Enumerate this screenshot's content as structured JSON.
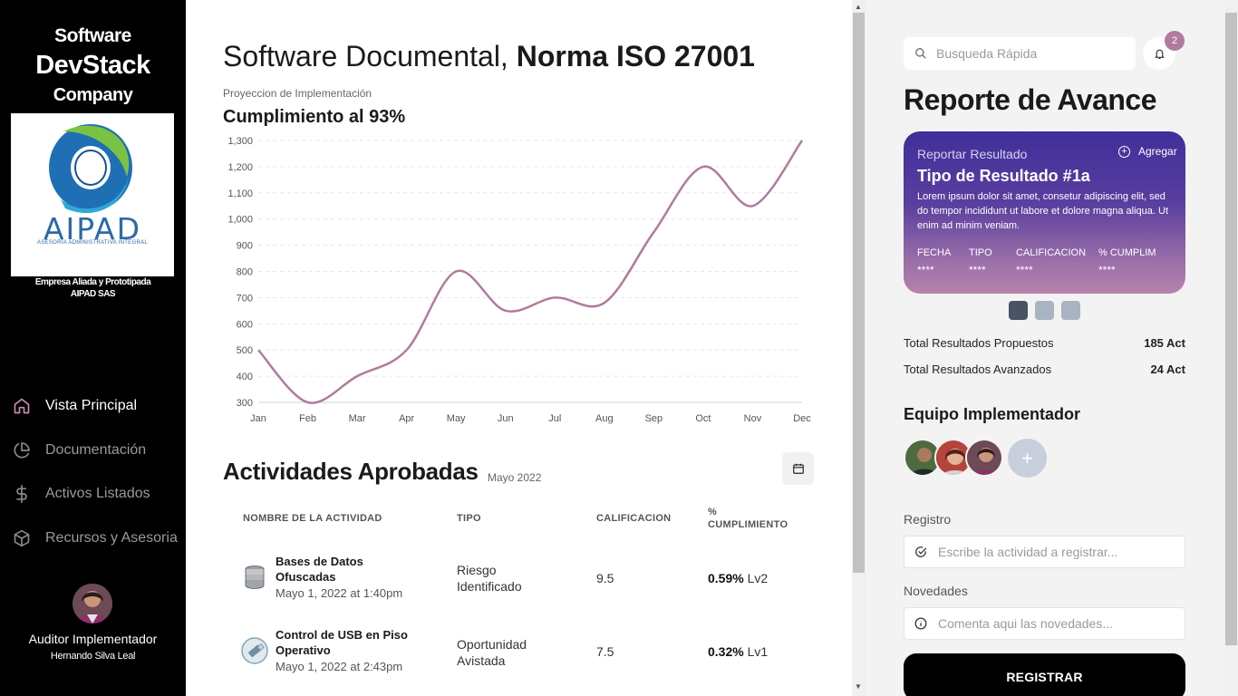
{
  "brand": {
    "line1": "Software",
    "line2": "DevStack",
    "line3": "Company"
  },
  "partner": {
    "logo_text": "AIPAD",
    "logo_sub": "ASESORÍA ADMINISTRATIVA INTEGRAL",
    "line1": "Empresa Aliada y Prototipada",
    "line2": "AIPAD SAS"
  },
  "nav": [
    {
      "label": "Vista Principal",
      "icon": "home-icon",
      "active": true
    },
    {
      "label": "Documentación",
      "icon": "pie-chart-icon",
      "active": false
    },
    {
      "label": "Activos Listados",
      "icon": "dollar-icon",
      "active": false
    },
    {
      "label": "Recursos y Asesoria",
      "icon": "box-icon",
      "active": false
    }
  ],
  "user": {
    "role": "Auditor Implementador",
    "name": "Hernando Silva Leal"
  },
  "main": {
    "title_light": "Software Documental, ",
    "title_bold": "Norma ISO 27001",
    "chart_subtitle": "Proyeccion de Implementación",
    "chart_title": "Cumplimiento al 93%",
    "activities_title": "Actividades Aprobadas",
    "activities_date": "Mayo 2022",
    "columns": [
      "NOMBRE DE LA ACTIVIDAD",
      "TIPO",
      "CALIFICACION",
      "%",
      "CUMPLIMIENTO"
    ],
    "rows": [
      {
        "name": "Bases de Datos Ofuscadas",
        "date": "Mayo 1, 2022 at 1:40pm",
        "type": "Riesgo Identificado",
        "score": "9.5",
        "pct": "0.59%",
        "level": "Lv2",
        "icon": "database-icon"
      },
      {
        "name": "Control de USB en Piso Operativo",
        "date": "Mayo 1, 2022 at 2:43pm",
        "type": "Oportunidad Avistada",
        "score": "7.5",
        "pct": "0.32%",
        "level": "Lv1",
        "icon": "usb-icon"
      }
    ]
  },
  "chart_data": {
    "type": "line",
    "title": "Cumplimiento al 93%",
    "subtitle": "Proyeccion de Implementación",
    "categories": [
      "Jan",
      "Feb",
      "Mar",
      "Apr",
      "May",
      "Jun",
      "Jul",
      "Aug",
      "Sep",
      "Oct",
      "Nov",
      "Dec"
    ],
    "series": [
      {
        "name": "Cumplimiento",
        "values": [
          500,
          300,
          400,
          500,
          800,
          650,
          700,
          680,
          950,
          1200,
          1050,
          1300
        ]
      }
    ],
    "ylim": [
      300,
      1300
    ],
    "yticks": [
      300,
      400,
      500,
      600,
      700,
      800,
      900,
      1000,
      1100,
      1200,
      1300
    ],
    "ytick_labels": [
      "300",
      "400",
      "500",
      "600",
      "700",
      "800",
      "900",
      "1,000",
      "1,100",
      "1,200",
      "1,300"
    ],
    "color": "#b07b9e",
    "grid": true
  },
  "right": {
    "search_placeholder": "Busqueda Rápida",
    "notifications": "2",
    "title": "Reporte de Avance",
    "card": {
      "subtitle": "Reportar Resultado",
      "add_label": "Agregar",
      "title": "Tipo de Resultado #1a",
      "body": "Lorem ipsum dolor sit amet, consetur adipiscing elit, sed do tempor incididunt ut labore et dolore magna aliqua. Ut enim ad minim veniam.",
      "cols": [
        {
          "label": "FECHA",
          "value": "****"
        },
        {
          "label": "TIPO",
          "value": "****"
        },
        {
          "label": "CALIFICACION",
          "value": "****"
        },
        {
          "label": "% CUMPLIM",
          "value": "****"
        }
      ]
    },
    "stats": [
      {
        "label": "Total Resultados Propuestos",
        "value": "185 Act"
      },
      {
        "label": "Total Resultados Avanzados",
        "value": "24 Act"
      }
    ],
    "team_title": "Equipo Implementador",
    "add_member": "+",
    "registro_label": "Registro",
    "registro_placeholder": "Escribe la actividad a registrar...",
    "novedades_label": "Novedades",
    "novedades_placeholder": "Comenta aqui las novedades...",
    "submit_label": "REGISTRAR"
  }
}
